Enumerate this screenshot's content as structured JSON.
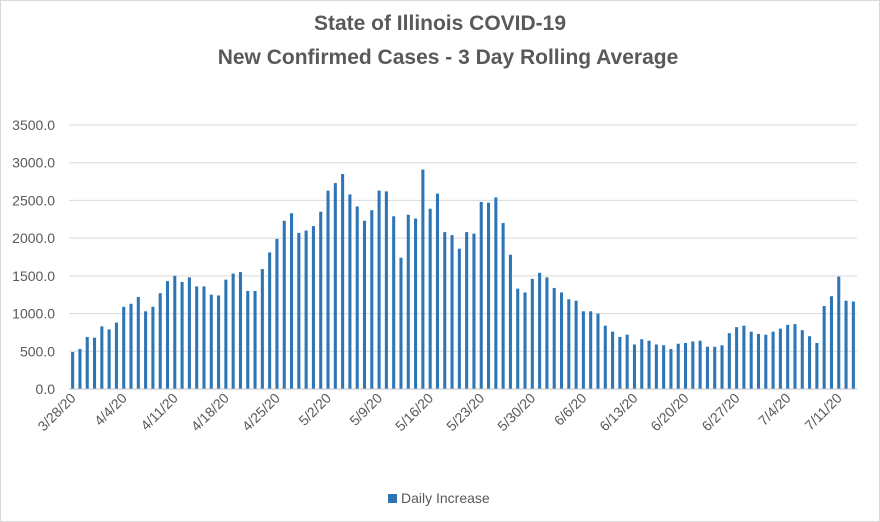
{
  "chart_data": {
    "type": "bar",
    "title": "State of Illinois COVID-19",
    "subtitle": "New Confirmed Cases - 3 Day Rolling Average",
    "xlabel": "",
    "ylabel": "",
    "ylim": [
      0,
      3500
    ],
    "y_ticks": [
      "0.0",
      "500.0",
      "1000.0",
      "1500.0",
      "2000.0",
      "2500.0",
      "3000.0",
      "3500.0"
    ],
    "x_tick_labels": [
      "3/28/20",
      "4/4/20",
      "4/11/20",
      "4/18/20",
      "4/25/20",
      "5/2/20",
      "5/9/20",
      "5/16/20",
      "5/23/20",
      "5/30/20",
      "6/6/20",
      "6/13/20",
      "6/20/20",
      "6/27/20",
      "7/4/20",
      "7/11/20"
    ],
    "grid": true,
    "legend_position": "bottom",
    "series": [
      {
        "name": "Daily Increase",
        "color": "#2e75b6",
        "dates": [
          "3/28/20",
          "3/29/20",
          "3/30/20",
          "3/31/20",
          "4/1/20",
          "4/2/20",
          "4/3/20",
          "4/4/20",
          "4/5/20",
          "4/6/20",
          "4/7/20",
          "4/8/20",
          "4/9/20",
          "4/10/20",
          "4/11/20",
          "4/12/20",
          "4/13/20",
          "4/14/20",
          "4/15/20",
          "4/16/20",
          "4/17/20",
          "4/18/20",
          "4/19/20",
          "4/20/20",
          "4/21/20",
          "4/22/20",
          "4/23/20",
          "4/24/20",
          "4/25/20",
          "4/26/20",
          "4/27/20",
          "4/28/20",
          "4/29/20",
          "4/30/20",
          "5/1/20",
          "5/2/20",
          "5/3/20",
          "5/4/20",
          "5/5/20",
          "5/6/20",
          "5/7/20",
          "5/8/20",
          "5/9/20",
          "5/10/20",
          "5/11/20",
          "5/12/20",
          "5/13/20",
          "5/14/20",
          "5/15/20",
          "5/16/20",
          "5/17/20",
          "5/18/20",
          "5/19/20",
          "5/20/20",
          "5/21/20",
          "5/22/20",
          "5/23/20",
          "5/24/20",
          "5/25/20",
          "5/26/20",
          "5/27/20",
          "5/28/20",
          "5/29/20",
          "5/30/20",
          "5/31/20",
          "6/1/20",
          "6/2/20",
          "6/3/20",
          "6/4/20",
          "6/5/20",
          "6/6/20",
          "6/7/20",
          "6/8/20",
          "6/9/20",
          "6/10/20",
          "6/11/20",
          "6/12/20",
          "6/13/20",
          "6/14/20",
          "6/15/20",
          "6/16/20",
          "6/17/20",
          "6/18/20",
          "6/19/20",
          "6/20/20",
          "6/21/20",
          "6/22/20",
          "6/23/20",
          "6/24/20",
          "6/25/20",
          "6/26/20",
          "6/27/20",
          "6/28/20",
          "6/29/20",
          "6/30/20",
          "7/1/20",
          "7/2/20",
          "7/3/20",
          "7/4/20",
          "7/5/20",
          "7/6/20",
          "7/7/20",
          "7/8/20",
          "7/9/20",
          "7/10/20",
          "7/11/20",
          "7/12/20",
          "7/13/20"
        ],
        "values": [
          490,
          530,
          690,
          680,
          830,
          790,
          880,
          1090,
          1130,
          1220,
          1030,
          1090,
          1270,
          1430,
          1500,
          1420,
          1480,
          1360,
          1360,
          1250,
          1240,
          1450,
          1530,
          1550,
          1300,
          1300,
          1590,
          1810,
          1990,
          2230,
          2330,
          2070,
          2100,
          2160,
          2350,
          2630,
          2730,
          2850,
          2580,
          2420,
          2230,
          2370,
          2630,
          2620,
          2290,
          1740,
          2310,
          2260,
          2910,
          2390,
          2590,
          2080,
          2040,
          1860,
          2080,
          2060,
          2480,
          2470,
          2540,
          2200,
          1780,
          1330,
          1280,
          1460,
          1540,
          1480,
          1340,
          1280,
          1190,
          1170,
          1030,
          1030,
          1000,
          840,
          760,
          690,
          720,
          590,
          660,
          640,
          590,
          580,
          530,
          600,
          610,
          630,
          640,
          560,
          560,
          580,
          740,
          820,
          840,
          760,
          730,
          720,
          760,
          800,
          850,
          860,
          780,
          700,
          610,
          1100,
          1230,
          1490,
          1170,
          1160
        ]
      }
    ]
  }
}
